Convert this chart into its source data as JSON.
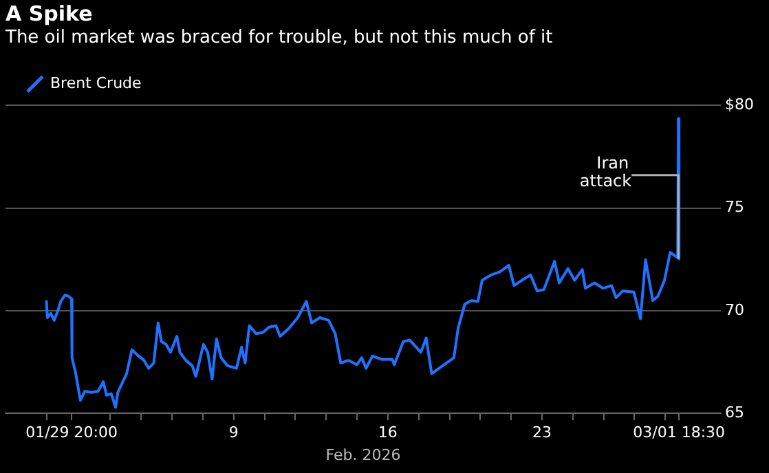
{
  "chart_data": {
    "type": "line",
    "title": "A Spike",
    "subtitle": "The oil market was braced for trouble, but not this much of it",
    "xlabel": "Feb. 2026",
    "legend": "top left",
    "grid": "y",
    "marker": "none",
    "line_style": "solid",
    "xlim": [
      -1.36,
      31.12
    ],
    "ylim": [
      65,
      80
    ],
    "xticks": [
      {
        "value": 0.5,
        "label": null
      },
      {
        "value": 1.64,
        "label": "01/29 20:00"
      },
      {
        "value": 3.4,
        "label": null
      },
      {
        "value": 4.8,
        "label": null
      },
      {
        "value": 6.2,
        "label": null
      },
      {
        "value": 7.6,
        "label": null
      },
      9,
      {
        "value": 10.4,
        "label": null
      },
      {
        "value": 11.8,
        "label": null
      },
      {
        "value": 13.2,
        "label": null
      },
      {
        "value": 14.6,
        "label": null
      },
      16,
      {
        "value": 17.4,
        "label": null
      },
      {
        "value": 18.8,
        "label": null
      },
      {
        "value": 20.2,
        "label": null
      },
      {
        "value": 21.6,
        "label": null
      },
      23,
      {
        "value": 24.4,
        "label": null
      },
      {
        "value": 25.8,
        "label": null
      },
      {
        "value": 27.2,
        "label": null
      },
      {
        "value": 28.6,
        "label": null
      },
      {
        "value": 29.22,
        "label": "03/01 18:30"
      }
    ],
    "yticks": [
      65,
      70,
      75,
      {
        "value": 80,
        "label": "$80"
      }
    ],
    "annotations": [
      {
        "text": "Iran attack",
        "x": 29.19,
        "y": 76.6
      }
    ],
    "series": [
      {
        "name": "Brent Crude",
        "color": "#1f72ff",
        "x": [
          0.5,
          0.54,
          0.7,
          0.85,
          1.01,
          1.15,
          1.34,
          1.51,
          1.64,
          1.66,
          1.83,
          2.04,
          2.24,
          2.53,
          2.84,
          3.08,
          3.23,
          3.44,
          3.64,
          3.74,
          4.14,
          4.38,
          4.63,
          4.93,
          5.14,
          5.37,
          5.57,
          5.72,
          5.93,
          6.13,
          6.42,
          6.56,
          6.83,
          7.12,
          7.28,
          7.63,
          7.82,
          8.02,
          8.22,
          8.43,
          8.72,
          9.13,
          9.36,
          9.52,
          9.71,
          10.02,
          10.32,
          10.61,
          10.92,
          11.11,
          11.51,
          11.91,
          12.3,
          12.54,
          12.91,
          13.31,
          13.61,
          13.86,
          14.21,
          14.6,
          14.81,
          15.01,
          15.3,
          15.71,
          16.2,
          16.29,
          16.7,
          16.99,
          17.5,
          17.74,
          17.99,
          18.49,
          19.0,
          19.19,
          19.49,
          19.79,
          20.09,
          20.28,
          20.69,
          21.08,
          21.49,
          21.73,
          22.09,
          22.48,
          22.78,
          23.08,
          23.57,
          23.78,
          24.18,
          24.48,
          24.83,
          24.97,
          25.38,
          25.77,
          26.16,
          26.36,
          26.67,
          27.17,
          27.47,
          27.7,
          28.03,
          28.26,
          28.56,
          28.82,
          29.16,
          29.19,
          29.22
        ],
        "values": [
          70.45,
          69.66,
          69.87,
          69.53,
          69.98,
          70.45,
          70.76,
          70.7,
          70.57,
          67.71,
          66.93,
          65.63,
          66.07,
          66.02,
          66.07,
          66.54,
          65.88,
          65.96,
          65.29,
          66.02,
          66.93,
          68.1,
          67.84,
          67.58,
          67.19,
          67.45,
          69.4,
          68.49,
          68.36,
          67.97,
          68.75,
          67.97,
          67.58,
          67.32,
          66.8,
          68.36,
          67.97,
          66.67,
          68.62,
          67.71,
          67.32,
          67.19,
          68.23,
          67.45,
          69.27,
          68.88,
          68.93,
          69.2,
          69.27,
          68.75,
          69.14,
          69.66,
          70.45,
          69.4,
          69.66,
          69.53,
          68.88,
          67.45,
          67.58,
          67.37,
          67.71,
          67.19,
          67.79,
          67.63,
          67.63,
          67.37,
          68.49,
          68.57,
          67.97,
          68.67,
          66.93,
          67.32,
          67.71,
          69.14,
          70.31,
          70.49,
          70.45,
          71.48,
          71.74,
          71.88,
          72.21,
          71.22,
          71.48,
          71.74,
          70.96,
          71.02,
          72.4,
          71.35,
          72.05,
          71.48,
          72.0,
          71.09,
          71.35,
          71.09,
          71.22,
          70.63,
          70.96,
          70.91,
          69.61,
          72.48,
          70.49,
          70.7,
          71.48,
          72.84,
          72.58,
          79.35,
          72.52
        ]
      }
    ]
  }
}
